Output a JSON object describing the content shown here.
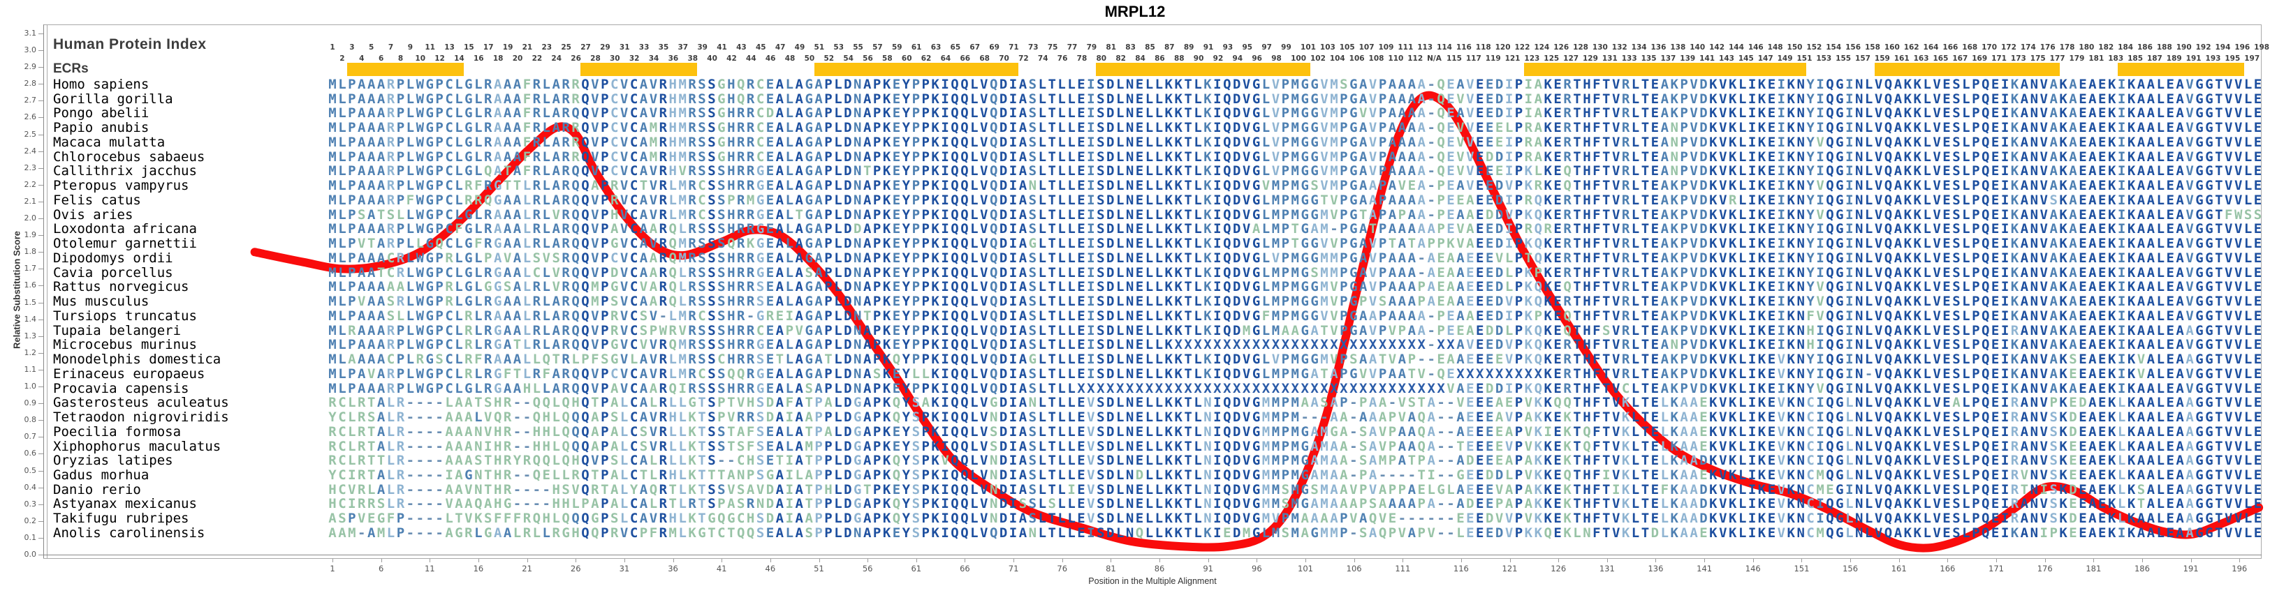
{
  "title": "MRPL12",
  "header": {
    "hpi_label": "Human Protein Index",
    "ecrs_label": "ECRs",
    "position_start": 1,
    "position_end": 198,
    "na_label": "N/A",
    "na_after_position": 113
  },
  "y_axis": {
    "label": "Relative Substitution Score",
    "min": 0.0,
    "max": 3.1,
    "step": 0.1
  },
  "x_axis": {
    "label": "Position in the Multiple Alignment",
    "tick_start": 1,
    "tick_step": 5,
    "tick_end": 196
  },
  "ecr_regions": [
    [
      3,
      14
    ],
    [
      27,
      38
    ],
    [
      51,
      71
    ],
    [
      80,
      101
    ],
    [
      123,
      151
    ],
    [
      159,
      177
    ],
    [
      184,
      196
    ]
  ],
  "colors": {
    "ecr_bar": "#FDC10E",
    "curve": "#F90C0C",
    "seq_high": "#1D4F9F",
    "seq_mid": "#4E80B2",
    "seq_low": "#8FB4D2",
    "seq_var": "#98C3A6",
    "gap": "#6B8FB3",
    "unknown": "#2B5CA8",
    "labels": "#3C3C3C"
  },
  "species": [
    {
      "name": "Homo sapiens",
      "seq": "MLPAAARPLWGPCLGLRAAAFRLARRQVPCVCAVRHMRSSGHQRCEALAGAPLDNAPKEYPPKIQQLVQDIASLTLLEISDLNELLKKTLKIQDVGLVPMGGVMSGAVPAAAA-QEAVEEDIPIAKERTHFTVRLTEAKPVDKVKLIKEIKNYIQGINLVQAKKLVESLPQEIKANVAKAEAEKIKAALEAVGGTVVLE"
    },
    {
      "name": "Gorilla gorilla",
      "seq": "MLPAAARPLWGPCLGLRAAAFRLARRQVPCVCAVRHMRSSGHQRCEALAGAPLDNAPKEYPPKIQQLVQDIASLTLLEISDLNELLKKTLKIQDVGLVPMGGVMPGAVPAAAA-QEVVEEDIPIAKERTHFTVRLTEAKPVDKVKLIKEIKNYIQGINLVQAKKLVESLPQEIKANVAKAEAEKIKAALEAVGGTVVLE"
    },
    {
      "name": "Pongo abelii",
      "seq": "MLPAAARPLWGPCLGLRAAAFRLARQQVPCVCAVRHMRSSGHRRCDALAGAPLDNAPKEYPPKIQQLVQDIASLTLLEISDLNELLKKTLKIQDVGLVPMGGVMPGVVPAAAA-QEAVEEDIPIAKERTHFTVRLTEAKPVDKVKLIKEIKNYIQGINLVQAKKLVESLPQEIKANVAKAEAEKIKAALEAVGGTVVLE"
    },
    {
      "name": "Papio anubis",
      "seq": "MLPAAARPLWGPCLGLRAAAFRLARRQVPCVCAMRHMRSSGHRRCEALAGAPLDNAPKEYPPKIQQLVQDIASLTLLEISDLNELLKKTLKIQDVGLVPMGGVMPGAVPAAAA-QEVVEEELPRAKERTHFTVRLTEANPVDKVKLIKEIKNYIQGINLVQAKKLVESLPQEIKANVAKAEAEKIKAALEAVGGTVVLE"
    },
    {
      "name": "Macaca mulatta",
      "seq": "MLPAAARPLWGPCLGLRAAAFRLARRQVPCVCAMRHMRSSGHRRCEALAGAPLDNAPKEYPPKIQQLVQDIASLTLLEISDLNELLKKTLKIQDVGLVPMGGVMPGAVPAAAA-QEVVEEEIPRAKERTHFTVRLTEANPVDKVKLIKEIKNYVQGINLVQAKKLVESLPQEIKANVAKAEAEKIKAALEAVGGTVVLE"
    },
    {
      "name": "Chlorocebus sabaeus",
      "seq": "MLPAAARPLWGPCLGLRAAAFRLARRQVPCVCAMRHMRSSGHRRCEALAGAPLDNAPKEYPPKIQQLVQDIASLTLLEISDLNELLKKTLKIQDVGLVPMGGVMPGAVPAAAA-QEVVEDDIPRAKERTHFTVRLTEANPVDKVKLIKEIKNYIQGINLVQAKKLVESLPQEIKANVAKAEAEKIKAALEAVGGTVVLE"
    },
    {
      "name": "Callithrix jacchus",
      "seq": "MLPAAARPLWGPCLGLQATAFRLARQQVPCVCAVRHVRSSSHRRGEALAGAPLDNTPKEYPPKIQQLVQDIASLTLLEISDLNELLKKTLKIQDVGLVPMGGVMPGAVPAAAA-QEVVEEEIPKLKEQTHFTVRLTEANPVDKVKLIKEIKNYIQGINLVQAKKLVESLPQEIKANVAKAEAEKIKAALEAVGGTVVLE"
    },
    {
      "name": "Pteropus vampyrus",
      "seq": "MLPAAARPLWGPCLRFRGTTLRLARQQAPRVCTVRLMRCSSHRRGEALAGAPLDNAPKEYPPKIQQLVQDIANLTLLEISDLNELLKKTLKIQDVGVMPMGSVMPGAAPAVEA-PEAVEEDVPKRKEQTHFTVRLTEAKPVDKVKLIKEIKNYVQGINLVQAKKLVESLPQEIKANVAKAEAEKIKAALEAVGGTVVLE"
    },
    {
      "name": "Felis catus",
      "seq": "MLPAAARPFWGPCLRRQGAALRLARQQVPRVCAVRLMRCSSPRMGEALAGAPLDNAPKEYPPKIQQLVQDIASLTLLEISDLNELLKKTLKIQDVGLMPMGGTVPGAAPAAAA-PEEAEEDIPRQKERTHFTVRLTEAKPVDKVRLIKEIKNYIQGINLVQAKKLVESLPQEIKANVSKAEAEKIKAALEAVGGTVVLE"
    },
    {
      "name": "Ovis aries",
      "seq": "MLPSATSLLWGPCLGLRAAALRLVRQQVPHVCAVRLMRCSSHRRGEALTGAPLDNAPKEYPPKIQQLVQDIASLTLLEISDLNELLKKTLKIQDVGLMPMGGMVPGTAPAPAA-PEAAEDDVPKQKERTHFTVRLTEAKPVDKVKLIKEIKNYVQGINLVQAKKLVESLPQEIKANVAKAEAEKIKAALEAVGGTFWSS"
    },
    {
      "name": "Loxodonta africana",
      "seq": "MLPAAARPLWGPCFGLRAAALRLARQQVPAVCAARQLRSSSHRRGEALAGAPLDDAPKEYPPKIQQLVQDIASLTLLEISDLNELLKKTLKIQDVALMPTGAM-PGATPAAAAAPEVAEEDIPRQRERTHFTVRLTEAKPVDKVKLIKEIKNYIQGINLVQAKKLVESLPQEIKANVAKAEAEKIKAALEAVGGTVVLE"
    },
    {
      "name": "Otolemur garnettii",
      "seq": "MLPVTARPLLGQCLGFRGAALRLARQQVPGVCAVRQMRSSSQRKGEALAGAPLDNAPKEYPPKIQQLVQDIAGLTLLEISDLNELLKKTLKIQDVGLMPTGGVVPGAVPTATAPPKVAEEDIPKQKERTHFTVRLTEAKPVDKVKLIKEIKNYIQGINLVQAKKLVESLPQEIKANVAKAEAEKIKAALEAVGGTVVLE"
    },
    {
      "name": "Dipodomys ordii",
      "seq": "MLPAAACRLWGPRLGLPAVALSVSRQQVPCVCAARQMRSSSHRRGEALAGAPLDNAPKEYPPKIQQLVQDIASLTLLEISDLNELLKKTLKIQDVGLVPMGGMMPGAVPAAA-AEAAEEEVLPTQKERTHFTVRLTEAKPVDKVKLIKEIKNYIQGINLVQAKKLVESLPQEIKANVAKAEAEKIKAALEAVGGTVVLE"
    },
    {
      "name": "Cavia porcellus",
      "seq": "MLPAATCRLWGPCLGLRGAALCLVRQQVPDVCAARQLRSSSHRRGEALASAPLDNAPKEYPPKIQQLVQDIASLTLLEISDLNELLKKTLKIQDVGLMPMGSMMPGAVPAAA-AEAAEEEDLPKPKERTHFTVRLTEAKPVDKVKLIKEIKNYIQGINLVQAKKLVESLPQEIKANVAKAEAEKIKAALEAVGGTVVLE"
    },
    {
      "name": "Rattus norvegicus",
      "seq": "MLPAAAAALWGPRLGLGGSALRLVRQQMPGVCVARQLRSSSHRRSEALAGAPLDNAPKEYPPKIQQLVQDIASLTLLEISDLNELLKKTLKIQDVGLMPMGGMVPGAVPAAAPAEAAEEEDLPKQKEQTHFTVRLTEAKPVDKVKLIKEIKNYVQGINLVQAKKLVESLPQEIKANVAKAEAEKIKAALEAVGGTVVLE"
    },
    {
      "name": "Mus musculus",
      "seq": "MLPVAASRLWGPRLGLRGAALRLARQQMPSVCAARQLRSSSHRRSEALAGAPLDNAPKEYPPKIQQLVQDIASLTLLEISDLNELLKKTLKIQDVGLMPMGGMVPGPVSAAAPAEAAEEEDVPKQKERTHFTVRLTEAKPVDKVKLIKEIKNYVQGINLVQAKKLVESLPQEIKANVAKAEAEKIKAALEAVGGTVVLE"
    },
    {
      "name": "Tursiops truncatus",
      "seq": "MLPAAASLLWGPCLRLRAAALRLARQQVPRVCSV-LMRCSSHR-GREIAGAPLDNTPKEYPPKIQQLVQDIASLTLLEISDLNELLKKTLKIQDVGFMPMGGVVPGAAPAAAA-PEAAEEDIPKPKEQTHFTVRLTEAKPVDKVKLIKEIKNFVQGINLVQAKKLVESLPQEIKANVAKAEAEKIKAALEAVGGTVVLE"
    },
    {
      "name": "Tupaia belangeri",
      "seq": "MLRAAARPLWGPCLRLRGAALRLARQQVPRVCSPWRVRSSSHRRCEAPVGAPLDNAPKEYPPKIQQLVQDIASLTLLEISDLNELLKKTLKIQDMGLMAAGATVPGAVPVPAA-PEEAEDDLPKQKEQTHFSVRLTEAKPVDKVKLIKEIKNHIQGINLVQAKKLVESLPQEIRANVAKAEAEKIKAALEAAGGTVVLE"
    },
    {
      "name": "Microcebus murinus",
      "seq": "MLPAAARPLWGPCLRLRGATLRLARQQVPGVCVVRQMRSSSHRRGEALAGAPLDNAPKEYPPKIQQLVQDIASLTLLEISDLNELLKXXXXXXXXXXXXXXXXXXXXXXXXXX-XXAVEEDVPKQKERTHFTVRLTEANPVDKVKLIKEIKNHIQGINLVQAKKLVESLPQEIKANVAKAEAEKIKAALEAVGGTVVLE"
    },
    {
      "name": "Monodelphis domestica",
      "seq": "MLAAAACPLRGSCLRFRAAALLQTRLPFSGVLAVRLMRSSCHRRSETLAGATLDNAPKQYPPKIQQLVQDIAGLTLLEISDLNELLKKTLKIQDVGLVPMGGMVPSAATVAP--EAAEEEEVPKQKERTHFTVRLTEAKPVDKVKLIKEVKNYIQGINLVQAKKLVESLPQEIKANVAKSEAEKIKVALEAAGGTVVLE"
    },
    {
      "name": "Erinaceus europaeus",
      "seq": "MLPAVARPLWGPCLRLRGFTLRFARQQVPCVCAVRLMRCSSQQRGEALAGAPLDNASKEYLLKIQQLVQDIASLTLLEISDLNELLKKTLKIQDVGLMPMGATAPGVVPAATV-QEXXXXXXXXXKERTHFTVRLTEAKPVDKVKLIKEVKNYIQGIN-VQAKKLVESLPQEIKANVAKEEAEKIKVALEAVGGTVVLE"
    },
    {
      "name": "Procavia capensis",
      "seq": "MLPAAARPLWGPCLGLRGAAHLLARQQVPAVCAARQIRSSSHRRGEALASAPLDNAPKEYPPKIQQLVQDIASLTLLXXXXXXXXXXXXXXXXXXXXXXXXXXXXXXXXXXXXXXVAEEDDIPKQKERTHFTVCLTEAKPVDKVKLIKEIKNYVQGINLVQAKKLVESLPQEIKANVAKAEAEKIKAALEAVGGTVVLE"
    },
    {
      "name": "Gasterosteus aculeatus",
      "seq": "RCLRTALR----LAATSHR--QQLQHQTPALCALRLLGTSPTVHSDAFATPALDGAPKQYSAKIQQLVGDIANLTLLEVSDLNELLKKTLNIQDVGMMPMAASAP-PAA-VSTA--VEEEAEPVKKQQTHFTVKLTELKAAEKVKLIKEVKNCIQGLNLVQAKKLVEALPQEIRANVPKEDAEKLKAALEAAGGTVVLE"
    },
    {
      "name": "Tetraodon nigroviridis",
      "seq": "YCLRSALR----AAALVQR--QHLQQQAPSLCAVRHLKTSPVRRSDAIAAPPLDGAPKQYSPKIQQLVNDIASLTLLEVSDLNELLKKTLNIQDVGMMPM---AA-AAAPVAQA--AEEEAVPAKKEKTHFTVKLTELKAAEKVKLIKEVKNCIQGLNLVQAKKLVESLPQEIRANVSKDEAEKLKAALEAAGGTVVLE"
    },
    {
      "name": "Poecilia formosa",
      "seq": "RCLRTALR----AAANVHR--HHLQQQAPALCSVRLLKTSSTAFSEALATPALDGAPKEYSPKIQQLVSDIASLTLLEVSDLNELLKKTLNIQDVGMMPMGAMGA-SAVPAAQA--AEEEEAPVKIEKTQFTVKLTELKAAEKVKLIKEVKNCIQGLNLVQAKKLVESLPQEIRANVSKDEAEKLKAALEAAGGTVVLE"
    },
    {
      "name": "Xiphophorus maculatus",
      "seq": "RCLRTALR----AAANIHR--HHLQQQAPALCSVRLLKTSSTSFSEALAMPPLDGAPKEYSPKIQQLVSDIASLTLLEVSDLNELLKKTLNIQDVGMMPMGAMAA-SAVPAAQA--TEEEEVPVKKEKTQFTVKLTELKAAEKVKLIKEVKNCIQGLNLVQAKKLVESLPQEIRANVSKEEAEKLKAALEAAGGTVVLE"
    },
    {
      "name": "Oryzias latipes",
      "seq": "RCLRTTLR----AAASTHRYRQQLQHQVPSLCALRLLKTS--CHSETIATPPLDGAPKQYSPKVQQLVNDIASLTLLEVSDLNELLKKTLNIQDVGMMPMGAMAA-SAMPATPA--ADEEEAPAKKEKTHFTVKLTELKAADKVKLIKEVKNCIQGLNLVQAKKLVESLPQEIRANVSKEEAEKLKAALEAAGGTVVLE"
    },
    {
      "name": "Gadus morhua",
      "seq": "YCIRTALR----IAGNTHR--QELLRQTPALCTLRHLKTTTANPSGAILAPPLDGAPKQYSPKIQQLVNDIASLTLLEVSDLNDLLKKTLNIQDVGMMPMGAMAA-PA----TI--GEEDDLPVKKEQTHFIVKLTELKAAEKVKLIKEVKNCMQGLNLVQAKKLVESLPQEIRVNVSKEEAEKLKAALEAAGGTVVLE"
    },
    {
      "name": "Danio rerio",
      "seq": "HCVRLALR----AAVNTHR----HSVQRTALYAQRTLKTSSVSAVDAIATPHLDGTPKEYSPKIQQLVNDIASLTLIEVSDLNELLKKTLNIQDVGMMSMGSMAAVPVAPPAELGLAEEEVAPAKKEKTHFTIKLTEFKAADKVKLIKEVKNCMEGINLVQAKKLVESLPQEIRTNISKDEAEKLKSALEAAGGTVVLE"
    },
    {
      "name": "Astyanax mexicanus",
      "seq": "HCIRRSLR----VAAQAHG----HHLPAPALCALRTLRTSPASRNDAIATPPLDGAPKQYSPKIQQLVNDISSLSLLEVSDLNELLKKTLNIQDVGMMSMGAMAAAPSAAAAPA--ADEEPAPAKKEKTHFTVKLTELKAADKVKLIKEVKNCIQGLNLVQAKKLVESLPQEIRANVSKEEAEKLKTALEAAGGTVVLE"
    },
    {
      "name": "Takifugu rubripes",
      "seq": "ASPVEGFP----LTVKSFFFRQHLQQQGPSLCAVRHLKTGQGCHSDAIAAPPLDGAPKQYSPKIQQLVNDIASLTLLEVSDLNELLKKTLNIQDVGMVPMAAAAPVAQVE------EEEDVVPVKKEKTHFTVKLTELKAADKVKLIKEVKNCIQGLNLVQAKKLVESLPQEIRANVSKDEAEKLKAALEAAGGTVVLE"
    },
    {
      "name": "Anolis carolinensis",
      "seq": "AAM-AMLP----AGRLGAALRLLRGHQQPRVCPFRMLKGTCTQQSEALASPPLDNAPKEYSPKIQQLVQDIANLTLLEISDLNQLLKKTLKIEDMGLMSMAGMMP-SAQPVAPV--LEEEDVPKKQEKLNFTVKLTDLKAAEKVKLIKEVKNCMQGLNLVQAKKLVESLPQEIKANIPKEEAEKIKAALEAAGGTVVLE"
    }
  ],
  "chart_data": {
    "type": "line",
    "title": "MRPL12",
    "xlabel": "Position in the Multiple Alignment",
    "ylabel": "Relative Substitution Score",
    "ylim": [
      0.0,
      3.1
    ],
    "legend_position": "none",
    "grid": false,
    "series_name": "relative substitution score",
    "points": [
      {
        "col": -7,
        "score": 1.8
      },
      {
        "col": -2,
        "score": 1.74
      },
      {
        "col": 2,
        "score": 1.7
      },
      {
        "col": 6,
        "score": 1.72
      },
      {
        "col": 10,
        "score": 1.8
      },
      {
        "col": 14,
        "score": 1.98
      },
      {
        "col": 18,
        "score": 2.22
      },
      {
        "col": 21,
        "score": 2.4
      },
      {
        "col": 24,
        "score": 2.54
      },
      {
        "col": 26,
        "score": 2.5
      },
      {
        "col": 28,
        "score": 2.28
      },
      {
        "col": 31,
        "score": 2.02
      },
      {
        "col": 34,
        "score": 1.84
      },
      {
        "col": 37,
        "score": 1.78
      },
      {
        "col": 41,
        "score": 1.86
      },
      {
        "col": 44,
        "score": 1.93
      },
      {
        "col": 47,
        "score": 1.9
      },
      {
        "col": 50,
        "score": 1.75
      },
      {
        "col": 53,
        "score": 1.55
      },
      {
        "col": 56,
        "score": 1.3
      },
      {
        "col": 59,
        "score": 1.05
      },
      {
        "col": 62,
        "score": 0.78
      },
      {
        "col": 65,
        "score": 0.55
      },
      {
        "col": 69,
        "score": 0.38
      },
      {
        "col": 73,
        "score": 0.25
      },
      {
        "col": 78,
        "score": 0.16
      },
      {
        "col": 83,
        "score": 0.08
      },
      {
        "col": 88,
        "score": 0.05
      },
      {
        "col": 93,
        "score": 0.05
      },
      {
        "col": 97,
        "score": 0.12
      },
      {
        "col": 100,
        "score": 0.35
      },
      {
        "col": 103,
        "score": 0.8
      },
      {
        "col": 106,
        "score": 1.5
      },
      {
        "col": 109,
        "score": 2.2
      },
      {
        "col": 111,
        "score": 2.55
      },
      {
        "col": 113,
        "score": 2.72
      },
      {
        "col": 115,
        "score": 2.7
      },
      {
        "col": 117,
        "score": 2.55
      },
      {
        "col": 120,
        "score": 2.2
      },
      {
        "col": 123,
        "score": 1.85
      },
      {
        "col": 126,
        "score": 1.55
      },
      {
        "col": 129,
        "score": 1.28
      },
      {
        "col": 132,
        "score": 1.02
      },
      {
        "col": 135,
        "score": 0.82
      },
      {
        "col": 139,
        "score": 0.62
      },
      {
        "col": 143,
        "score": 0.5
      },
      {
        "col": 147,
        "score": 0.42
      },
      {
        "col": 151,
        "score": 0.36
      },
      {
        "col": 155,
        "score": 0.26
      },
      {
        "col": 159,
        "score": 0.14
      },
      {
        "col": 162,
        "score": 0.06
      },
      {
        "col": 165,
        "score": 0.04
      },
      {
        "col": 168,
        "score": 0.08
      },
      {
        "col": 171,
        "score": 0.16
      },
      {
        "col": 174,
        "score": 0.28
      },
      {
        "col": 177,
        "score": 0.4
      },
      {
        "col": 180,
        "score": 0.38
      },
      {
        "col": 183,
        "score": 0.28
      },
      {
        "col": 186,
        "score": 0.2
      },
      {
        "col": 189,
        "score": 0.14
      },
      {
        "col": 192,
        "score": 0.12
      },
      {
        "col": 195,
        "score": 0.18
      },
      {
        "col": 199,
        "score": 0.28
      }
    ]
  }
}
